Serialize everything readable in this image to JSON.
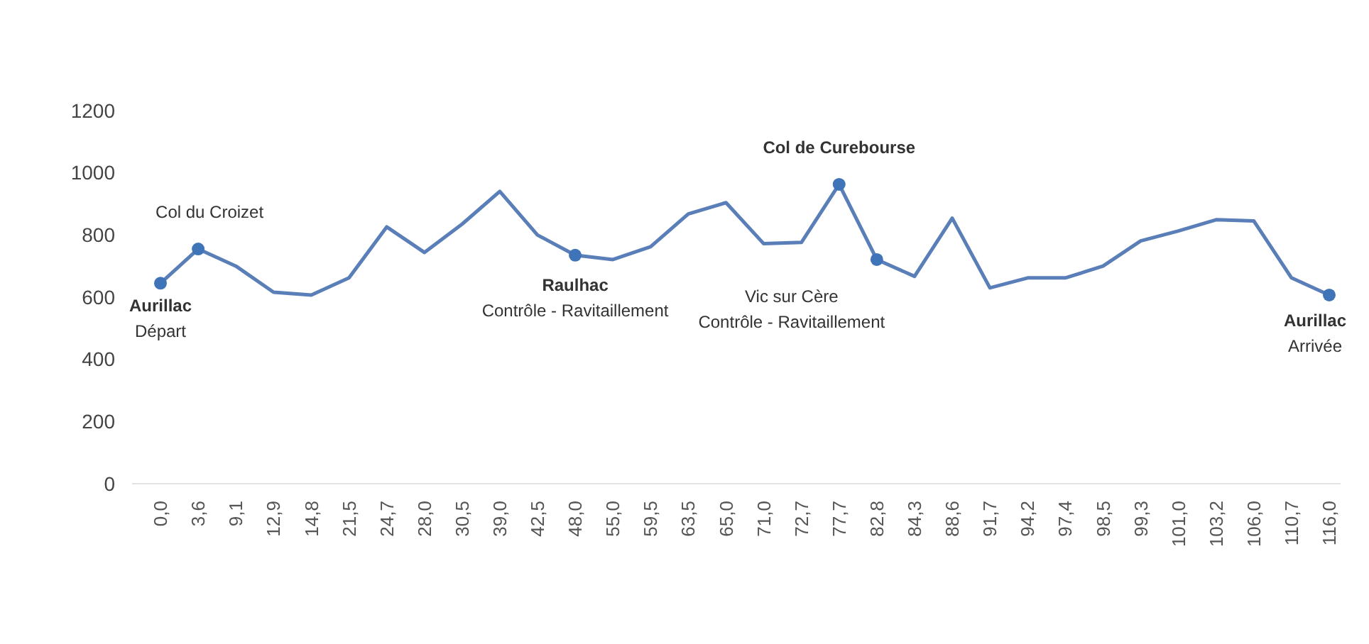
{
  "chart_data": {
    "type": "line",
    "categories": [
      "0,0",
      "3,6",
      "9,1",
      "12,9",
      "14,8",
      "21,5",
      "24,7",
      "28,0",
      "30,5",
      "39,0",
      "42,5",
      "48,0",
      "55,0",
      "59,5",
      "63,5",
      "65,0",
      "71,0",
      "72,7",
      "77,7",
      "82,8",
      "84,3",
      "88,6",
      "91,7",
      "94,2",
      "97,4",
      "98,5",
      "99,3",
      "101,0",
      "103,2",
      "106,0",
      "110,7",
      "116,0"
    ],
    "series": [
      {
        "color": "#5a7fb8",
        "values": [
          645,
          755,
          700,
          616,
          607,
          662,
          826,
          744,
          835,
          940,
          800,
          735,
          721,
          762,
          868,
          904,
          772,
          776,
          963,
          721,
          667,
          854,
          630,
          662,
          662,
          700,
          781,
          813,
          849,
          845,
          662,
          607
        ]
      },
      {
        "type": "scatter",
        "marker": "circle",
        "color": "#3f75b8",
        "x": [
          "0,0",
          "3,6",
          "48,0",
          "77,7",
          "82,8",
          "116,0"
        ],
        "values": [
          645,
          755,
          735,
          963,
          721,
          607
        ]
      }
    ],
    "ylim": [
      0,
      1200
    ],
    "yticks": [
      0,
      200,
      400,
      600,
      800,
      1000,
      1200
    ],
    "grid": false,
    "annotations": [
      {
        "text": "Aurillac\nDépart",
        "x": "0,0",
        "y": 645
      },
      {
        "text": "Col du Croizet",
        "x": "3,6",
        "y": 755
      },
      {
        "text": "Raulhac\nContrôle - Ravitaillement",
        "x": "48,0",
        "y": 735
      },
      {
        "text": "Col de Curebourse",
        "x": "77,7",
        "y": 963
      },
      {
        "text": "Vic sur Cère\nContrôle - Ravitaillement",
        "x": "82,8",
        "y": 721
      },
      {
        "text": "Aurillac\nArrivée",
        "x": "116,0",
        "y": 607
      }
    ]
  }
}
